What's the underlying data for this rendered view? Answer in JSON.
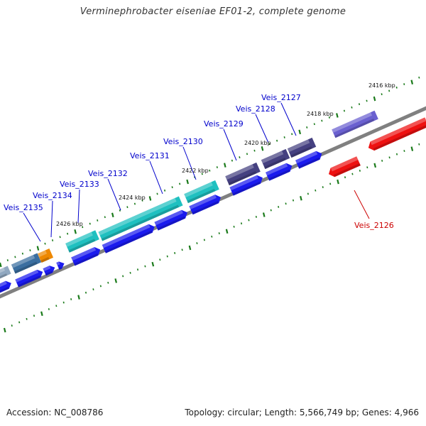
{
  "title": "Verminephrobacter eiseniae EF01-2, complete genome",
  "footer": {
    "accession": "Accession: NC_008786",
    "summary": "Topology: circular; Length: 5,566,749 bp; Genes: 4,966"
  },
  "kbp_labels": [
    "2416 kbp",
    "2418 kbp",
    "2420 kbp",
    "2422 kbp",
    "2424 kbp",
    "2426 kbp"
  ],
  "gene_labels": [
    {
      "text": "Veis_2127",
      "color": "#0000cc"
    },
    {
      "text": "Veis_2128",
      "color": "#0000cc"
    },
    {
      "text": "Veis_2129",
      "color": "#0000cc"
    },
    {
      "text": "Veis_2130",
      "color": "#0000cc"
    },
    {
      "text": "Veis_2131",
      "color": "#0000cc"
    },
    {
      "text": "Veis_2132",
      "color": "#0000cc"
    },
    {
      "text": "Veis_2133",
      "color": "#0000cc"
    },
    {
      "text": "Veis_2134",
      "color": "#0000cc"
    },
    {
      "text": "Veis_2135",
      "color": "#0000cc"
    },
    {
      "text": "Veis_2126",
      "color": "#cc0000"
    }
  ],
  "colors": {
    "backbone": "#808080",
    "cds": "#1a1aee",
    "tick": "#1a7a1a",
    "teal": "#1fc0c0",
    "purple": "#454080",
    "steel_blue": "#3a6ea0",
    "orange": "#ee8800",
    "red": "#ee1111",
    "lavender": "#6a60d0"
  }
}
